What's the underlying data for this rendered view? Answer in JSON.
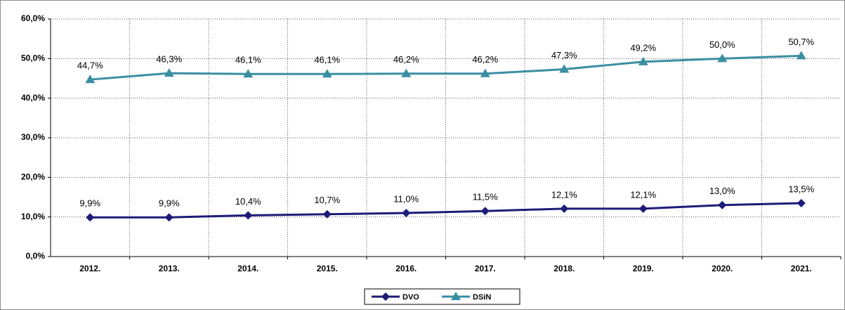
{
  "chart_data": {
    "type": "line",
    "categories": [
      "2012.",
      "2013.",
      "2014.",
      "2015.",
      "2016.",
      "2017.",
      "2018.",
      "2019.",
      "2020.",
      "2021."
    ],
    "series": [
      {
        "name": "DVO",
        "color": "#1c1c78",
        "marker": "diamond",
        "values": [
          9.9,
          9.9,
          10.4,
          10.7,
          11.0,
          11.5,
          12.1,
          12.1,
          13.0,
          13.5
        ],
        "value_labels": [
          "9,9%",
          "9,9%",
          "10,4%",
          "10,7%",
          "11,0%",
          "11,5%",
          "12,1%",
          "12,1%",
          "13,0%",
          "13,5%"
        ]
      },
      {
        "name": "DSiN",
        "color": "#3a8ea2",
        "marker": "triangle",
        "values": [
          44.7,
          46.3,
          46.1,
          46.1,
          46.2,
          46.2,
          47.3,
          49.2,
          50.0,
          50.7
        ],
        "value_labels": [
          "44,7%",
          "46,3%",
          "46,1%",
          "46,1%",
          "46,2%",
          "46,2%",
          "47,3%",
          "49,2%",
          "50,0%",
          "50,7%"
        ]
      }
    ],
    "ylim": [
      0,
      60
    ],
    "yticks": [
      {
        "value": 0,
        "label": "0,0%"
      },
      {
        "value": 10,
        "label": "10,0%"
      },
      {
        "value": 20,
        "label": "20,0%"
      },
      {
        "value": 30,
        "label": "30,0%"
      },
      {
        "value": 40,
        "label": "40,0%"
      },
      {
        "value": 50,
        "label": "50,0%"
      },
      {
        "value": 60,
        "label": "60,0%"
      }
    ],
    "grid": true,
    "legend": "bottom"
  }
}
